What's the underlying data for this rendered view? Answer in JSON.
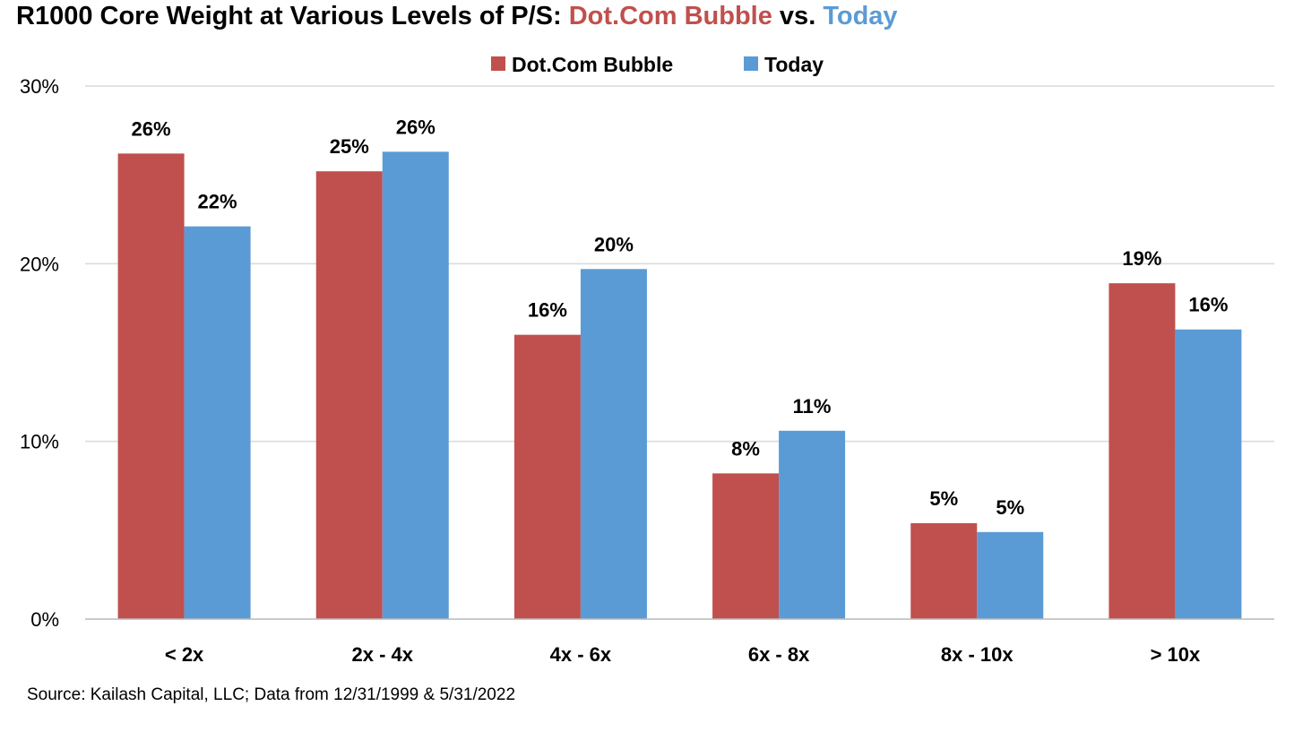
{
  "chart_data": {
    "type": "bar",
    "title": {
      "prefix": "R1000 Core Weight at Various Levels of P/S: ",
      "part1": "Dot.Com Bubble",
      "middle": " vs. ",
      "part2": "Today"
    },
    "categories": [
      "< 2x",
      "2x - 4x",
      "4x - 6x",
      "6x - 8x",
      "8x - 10x",
      "> 10x"
    ],
    "series": [
      {
        "name": "Dot.Com Bubble",
        "color": "#C0504D",
        "values": [
          26.2,
          25.2,
          16.0,
          8.2,
          5.4,
          18.9
        ],
        "labels": [
          "26%",
          "25%",
          "16%",
          "8%",
          "5%",
          "19%"
        ]
      },
      {
        "name": "Today",
        "color": "#5B9BD5",
        "values": [
          22.1,
          26.3,
          19.7,
          10.6,
          4.9,
          16.3
        ],
        "labels": [
          "22%",
          "26%",
          "20%",
          "11%",
          "5%",
          "16%"
        ]
      }
    ],
    "ylim": [
      0,
      30
    ],
    "yticks": [
      0,
      10,
      20,
      30
    ],
    "ytick_labels": [
      "0%",
      "10%",
      "20%",
      "30%"
    ],
    "xlabel": "",
    "ylabel": "",
    "grid": true,
    "legend_position": "top-center"
  },
  "source": "Source: Kailash Capital, LLC; Data from 12/31/1999 & 5/31/2022"
}
